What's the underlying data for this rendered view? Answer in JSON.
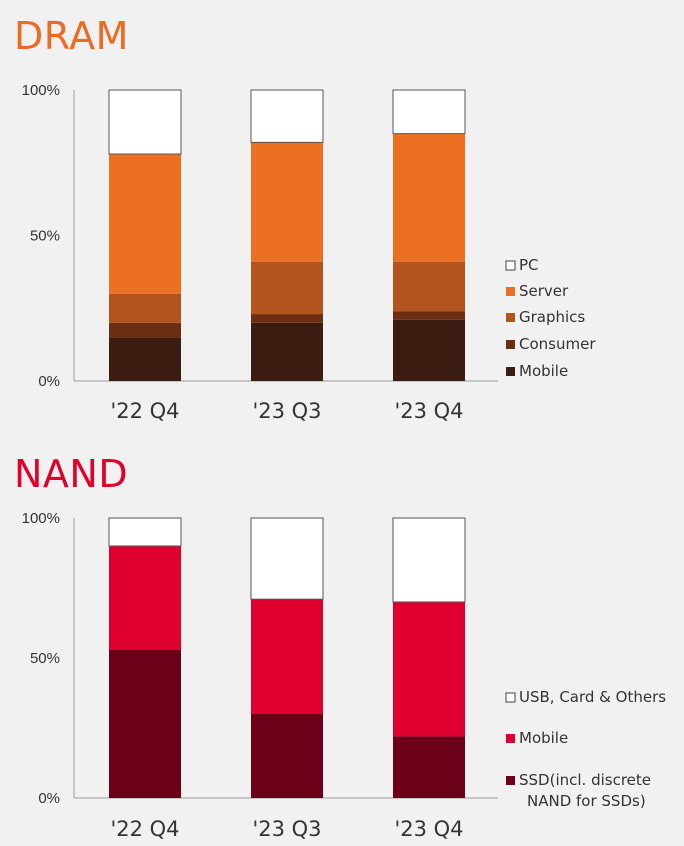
{
  "chart_data": [
    {
      "type": "bar",
      "stacked": true,
      "title": "DRAM",
      "categories": [
        "'22 Q4",
        "'23 Q3",
        "'23 Q4"
      ],
      "ylim": [
        0,
        100
      ],
      "yticks": [
        "100%",
        "50%",
        "0%"
      ],
      "series": [
        {
          "name": "Mobile",
          "color": "#3b1c10",
          "values": [
            15,
            20,
            21
          ]
        },
        {
          "name": "Consumer",
          "color": "#6c2e12",
          "values": [
            5,
            3,
            3
          ]
        },
        {
          "name": "Graphics",
          "color": "#b3541e",
          "values": [
            10,
            18,
            17
          ]
        },
        {
          "name": "Server",
          "color": "#ed7022",
          "values": [
            48,
            41,
            44
          ]
        },
        {
          "name": "PC",
          "color": "#ffffff",
          "values": [
            22,
            18,
            15
          ]
        }
      ]
    },
    {
      "type": "bar",
      "stacked": true,
      "title": "NAND",
      "categories": [
        "'22 Q4",
        "'23 Q3",
        "'23 Q4"
      ],
      "ylim": [
        0,
        100
      ],
      "yticks": [
        "100%",
        "50%",
        "0%"
      ],
      "series": [
        {
          "name": "SSD(incl. discrete NAND for SSDs)",
          "color": "#6b0018",
          "values": [
            53,
            30,
            22
          ]
        },
        {
          "name": "Mobile",
          "color": "#df0030",
          "values": [
            37,
            41,
            48
          ]
        },
        {
          "name": "USB, Card & Others",
          "color": "#ffffff",
          "values": [
            10,
            29,
            30
          ]
        }
      ]
    }
  ]
}
